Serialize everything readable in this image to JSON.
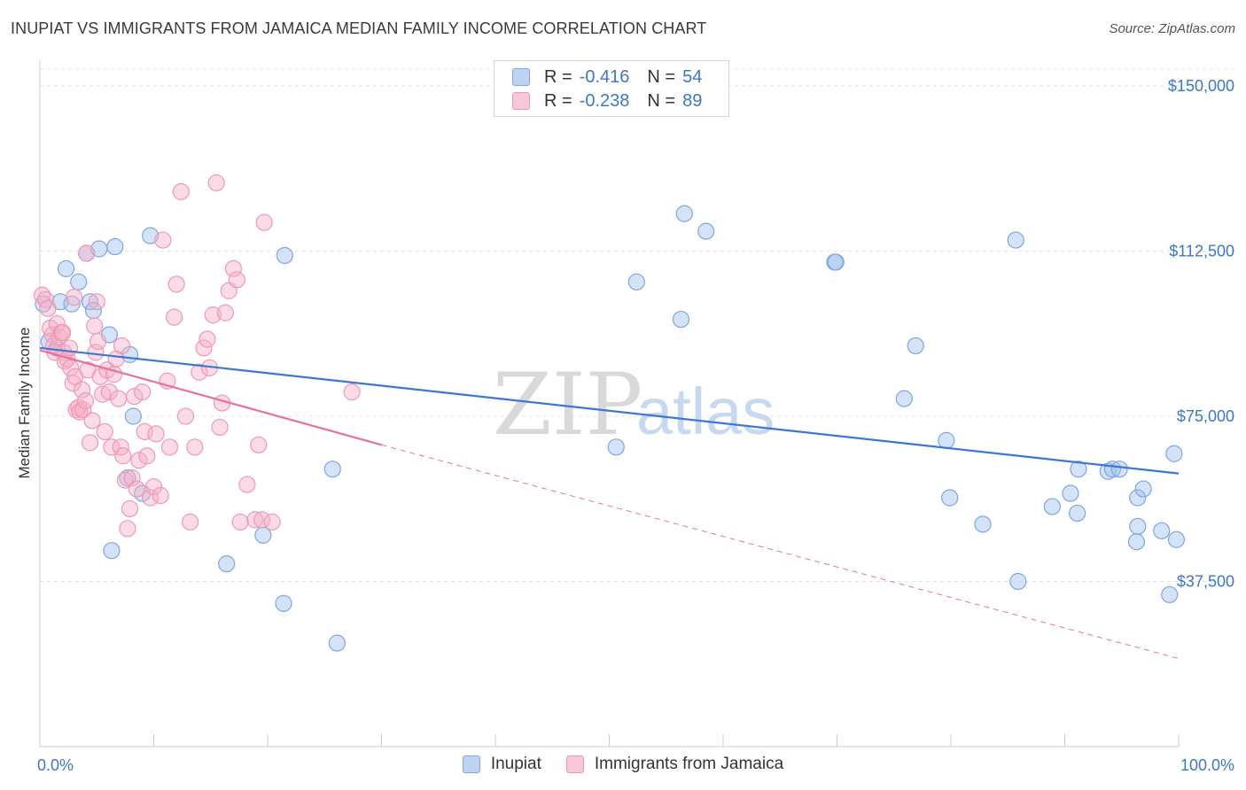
{
  "title": "INUPIAT VS IMMIGRANTS FROM JAMAICA MEDIAN FAMILY INCOME CORRELATION CHART",
  "source": "Source: ZipAtlas.com",
  "watermark": {
    "zip": "ZIP",
    "atlas": "atlas"
  },
  "legend": {
    "r_label": "R =",
    "n_label": "N =",
    "rows": [
      {
        "r": "-0.416",
        "n": "54",
        "fill": "#bcd3f2",
        "stroke": "#7ea6e0"
      },
      {
        "r": "-0.238",
        "n": "89",
        "fill": "#f9c8d8",
        "stroke": "#ef98b6"
      }
    ]
  },
  "bottom_legend": [
    {
      "label": "Inupiat",
      "fill": "#bcd3f2",
      "stroke": "#7ea6e0"
    },
    {
      "label": "Immigrants from Jamaica",
      "fill": "#f9c8d8",
      "stroke": "#ef98b6"
    }
  ],
  "chart_data": {
    "type": "scatter",
    "ylabel": "Median Family Income",
    "xlim": [
      0,
      100
    ],
    "ylim": [
      0,
      150000
    ],
    "x_tick_labels": [
      "0.0%",
      "100.0%"
    ],
    "y_ticks": [
      {
        "value": 37500,
        "label": "$37,500"
      },
      {
        "value": 75000,
        "label": "$75,000"
      },
      {
        "value": 112500,
        "label": "$112,500"
      },
      {
        "value": 150000,
        "label": "$150,000"
      }
    ],
    "grid": true,
    "series": [
      {
        "name": "Inupiat",
        "color": "#3b78d4",
        "fill": "rgba(160,192,238,0.45)",
        "stroke": "#7ea6e0",
        "trend": {
          "x0": 0,
          "y0": 90500,
          "x1": 100,
          "y1": 62000,
          "dashed_to": null
        },
        "points": [
          [
            0.3,
            100500
          ],
          [
            0.8,
            92000
          ],
          [
            1.5,
            90500
          ],
          [
            1.8,
            101000
          ],
          [
            2.3,
            108500
          ],
          [
            2.8,
            100500
          ],
          [
            3.4,
            105500
          ],
          [
            4.1,
            112000
          ],
          [
            4.4,
            101000
          ],
          [
            4.7,
            99000
          ],
          [
            5.2,
            113000
          ],
          [
            6.1,
            93500
          ],
          [
            6.3,
            44500
          ],
          [
            6.6,
            113500
          ],
          [
            7.7,
            61000
          ],
          [
            7.9,
            89000
          ],
          [
            8.2,
            75000
          ],
          [
            9.0,
            57500
          ],
          [
            9.7,
            116000
          ],
          [
            16.4,
            41500
          ],
          [
            19.6,
            48000
          ],
          [
            21.4,
            32500
          ],
          [
            21.5,
            111500
          ],
          [
            25.7,
            63000
          ],
          [
            26.1,
            23500
          ],
          [
            50.6,
            68000
          ],
          [
            52.4,
            105500
          ],
          [
            56.3,
            97000
          ],
          [
            56.6,
            121000
          ],
          [
            58.5,
            117000
          ],
          [
            69.8,
            110000
          ],
          [
            69.9,
            110000
          ],
          [
            75.9,
            79000
          ],
          [
            76.9,
            91000
          ],
          [
            79.6,
            69500
          ],
          [
            79.9,
            56500
          ],
          [
            82.8,
            50500
          ],
          [
            85.7,
            115000
          ],
          [
            85.9,
            37500
          ],
          [
            88.9,
            54500
          ],
          [
            90.5,
            57500
          ],
          [
            91.1,
            53000
          ],
          [
            91.2,
            63000
          ],
          [
            93.8,
            62500
          ],
          [
            94.2,
            63000
          ],
          [
            94.8,
            63000
          ],
          [
            96.3,
            46500
          ],
          [
            96.4,
            50000
          ],
          [
            96.4,
            56500
          ],
          [
            96.9,
            58500
          ],
          [
            98.5,
            49000
          ],
          [
            99.2,
            34500
          ],
          [
            99.6,
            66500
          ],
          [
            99.8,
            47000
          ]
        ]
      },
      {
        "name": "Immigrants from Jamaica",
        "color": "#e8709a",
        "fill": "rgba(246,176,200,0.45)",
        "stroke": "#ef98b6",
        "trend": {
          "x0": 0,
          "y0": 90000,
          "x1": 30,
          "y1": 68500,
          "dashed_to": {
            "x": 100,
            "y": 20000
          }
        },
        "points": [
          [
            0.2,
            102500
          ],
          [
            0.5,
            101500
          ],
          [
            0.7,
            99500
          ],
          [
            0.9,
            95000
          ],
          [
            1.1,
            93500
          ],
          [
            1.2,
            91000
          ],
          [
            1.3,
            89500
          ],
          [
            1.5,
            96000
          ],
          [
            1.7,
            93000
          ],
          [
            1.9,
            94000
          ],
          [
            2.1,
            89500
          ],
          [
            2.2,
            87500
          ],
          [
            2.4,
            88000
          ],
          [
            2.6,
            90500
          ],
          [
            2.7,
            86000
          ],
          [
            2.9,
            82500
          ],
          [
            3.1,
            84000
          ],
          [
            3.2,
            76500
          ],
          [
            3.4,
            77000
          ],
          [
            3.5,
            76000
          ],
          [
            3.7,
            81000
          ],
          [
            3.8,
            76500
          ],
          [
            4.0,
            78500
          ],
          [
            4.2,
            85500
          ],
          [
            4.4,
            69000
          ],
          [
            4.6,
            74000
          ],
          [
            4.8,
            95500
          ],
          [
            4.9,
            89500
          ],
          [
            5.1,
            92000
          ],
          [
            5.3,
            84000
          ],
          [
            5.5,
            80000
          ],
          [
            5.7,
            71500
          ],
          [
            5.9,
            85500
          ],
          [
            6.1,
            80500
          ],
          [
            6.3,
            68000
          ],
          [
            6.5,
            84500
          ],
          [
            6.7,
            88000
          ],
          [
            6.9,
            79000
          ],
          [
            7.1,
            68000
          ],
          [
            7.3,
            66000
          ],
          [
            7.5,
            60500
          ],
          [
            7.7,
            49500
          ],
          [
            7.9,
            54000
          ],
          [
            8.1,
            61000
          ],
          [
            8.3,
            79500
          ],
          [
            8.5,
            58500
          ],
          [
            8.7,
            65000
          ],
          [
            9.0,
            80500
          ],
          [
            9.2,
            71500
          ],
          [
            9.4,
            66000
          ],
          [
            9.7,
            56500
          ],
          [
            10.0,
            59000
          ],
          [
            10.2,
            71000
          ],
          [
            10.6,
            57000
          ],
          [
            10.8,
            115000
          ],
          [
            11.2,
            83000
          ],
          [
            11.4,
            68000
          ],
          [
            11.8,
            97500
          ],
          [
            12.0,
            105000
          ],
          [
            12.4,
            126000
          ],
          [
            12.8,
            75000
          ],
          [
            13.2,
            51000
          ],
          [
            13.6,
            68000
          ],
          [
            14.0,
            85000
          ],
          [
            14.4,
            90500
          ],
          [
            14.7,
            92500
          ],
          [
            14.9,
            86000
          ],
          [
            15.2,
            98000
          ],
          [
            15.5,
            128000
          ],
          [
            15.8,
            72500
          ],
          [
            16.0,
            78000
          ],
          [
            16.3,
            98500
          ],
          [
            16.6,
            103500
          ],
          [
            17.0,
            108500
          ],
          [
            17.3,
            106000
          ],
          [
            17.6,
            51000
          ],
          [
            18.2,
            59500
          ],
          [
            18.9,
            51500
          ],
          [
            19.2,
            68500
          ],
          [
            19.5,
            51500
          ],
          [
            19.7,
            119000
          ],
          [
            20.4,
            51000
          ],
          [
            27.4,
            80500
          ],
          [
            2.0,
            94000
          ],
          [
            4.1,
            112000
          ],
          [
            5.0,
            101000
          ],
          [
            7.2,
            91000
          ],
          [
            3.0,
            102000
          ]
        ]
      }
    ]
  }
}
